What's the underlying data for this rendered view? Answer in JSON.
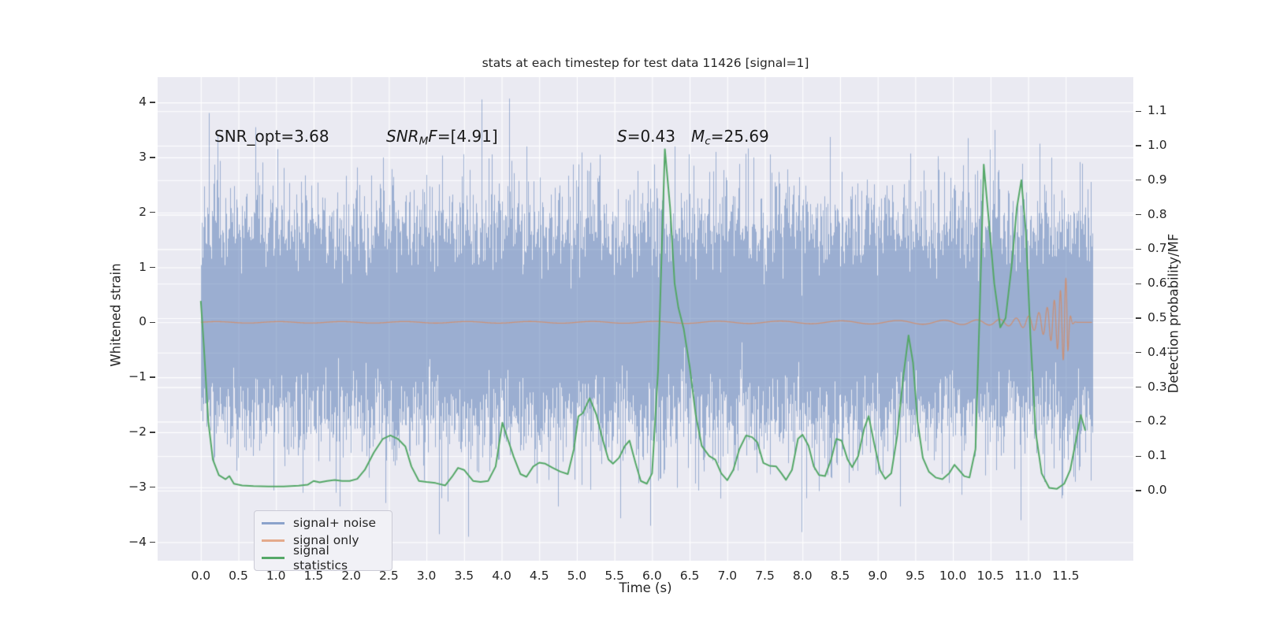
{
  "title": "stats at each timestep for test data 11426 [signal=1]",
  "colors": {
    "axes_bg": "#eaeaf2",
    "grid": "#ffffff",
    "noise_blue": "#4C72B0",
    "signal_orange": "#DD8452",
    "stats_green": "#55A868",
    "legend_bg": "#f1f1f6",
    "legend_border": "#cbcbd6",
    "text": "#262626"
  },
  "legend": {
    "items": [
      {
        "label": "signal+ noise",
        "swatch_color": "rgba(76,114,176,0.62)"
      },
      {
        "label": "signal only",
        "swatch_color": "rgba(221,132,82,0.65)"
      },
      {
        "label": "signal statistics",
        "swatch_color": "#55A868"
      }
    ]
  },
  "annotations": {
    "snr_opt": {
      "text": "SNR_opt=3.68"
    },
    "snr_mf": {
      "pre": "SNR",
      "sub": "M",
      "mid": "F",
      "post": "=[4.91]"
    },
    "s": {
      "pre": "S",
      "post": "=0.43"
    },
    "mc": {
      "pre": "M",
      "sub": "c",
      "post": "=25.69"
    }
  },
  "chart_data": {
    "type": "line",
    "title": "stats at each timestep for test data 11426 [signal=1]",
    "x_axis": {
      "label": "Time (s)",
      "range": [
        -0.574,
        12.405
      ],
      "ticks": [
        {
          "label": "0.0",
          "v": 0.0
        },
        {
          "label": "0.5",
          "v": 0.5
        },
        {
          "label": "1.0",
          "v": 1.0
        },
        {
          "label": "1.5",
          "v": 1.5
        },
        {
          "label": "2.0",
          "v": 2.0
        },
        {
          "label": "2.5",
          "v": 2.5
        },
        {
          "label": "3.0",
          "v": 3.0
        },
        {
          "label": "3.5",
          "v": 3.5
        },
        {
          "label": "4.0",
          "v": 4.0
        },
        {
          "label": "4.5",
          "v": 4.5
        },
        {
          "label": "5.0",
          "v": 5.0
        },
        {
          "label": "5.5",
          "v": 5.5
        },
        {
          "label": "6.0",
          "v": 6.0
        },
        {
          "label": "6.5",
          "v": 6.5
        },
        {
          "label": "7.0",
          "v": 7.0
        },
        {
          "label": "7.5",
          "v": 7.5
        },
        {
          "label": "8.0",
          "v": 8.0
        },
        {
          "label": "8.5",
          "v": 8.5
        },
        {
          "label": "9.0",
          "v": 9.0
        },
        {
          "label": "9.5",
          "v": 9.5
        },
        {
          "label": "10.0",
          "v": 10.0
        },
        {
          "label": "10.5",
          "v": 10.5
        },
        {
          "label": "11.0",
          "v": 11.0
        },
        {
          "label": "11.5",
          "v": 11.5
        }
      ]
    },
    "left_axis": {
      "label": "Whitened strain",
      "range": [
        -4.34,
        4.46
      ],
      "ticks": [
        {
          "label": "4",
          "v": 4
        },
        {
          "label": "3",
          "v": 3
        },
        {
          "label": "2",
          "v": 2
        },
        {
          "label": "1",
          "v": 1
        },
        {
          "label": "0",
          "v": 0
        },
        {
          "label": "−1",
          "v": -1
        },
        {
          "label": "−2",
          "v": -2
        },
        {
          "label": "−3",
          "v": -3
        },
        {
          "label": "−4",
          "v": -4
        }
      ]
    },
    "right_axis": {
      "label": "Detection probability/MF",
      "range": [
        -0.2,
        1.2
      ],
      "ticks": [
        {
          "label": "1.1",
          "v": 1.1
        },
        {
          "label": "1.0",
          "v": 1.0
        },
        {
          "label": "0.9",
          "v": 0.9
        },
        {
          "label": "0.8",
          "v": 0.8
        },
        {
          "label": "0.7",
          "v": 0.7
        },
        {
          "label": "0.6",
          "v": 0.6
        },
        {
          "label": "0.5",
          "v": 0.5
        },
        {
          "label": "0.4",
          "v": 0.4
        },
        {
          "label": "0.3",
          "v": 0.3
        },
        {
          "label": "0.2",
          "v": 0.2
        },
        {
          "label": "0.1",
          "v": 0.1
        },
        {
          "label": "0.0",
          "v": 0.0
        }
      ]
    },
    "noise": {
      "name": "signal+ noise",
      "axis": "left",
      "color": "#4C72B0",
      "alpha": 0.5,
      "sigma": 0.93,
      "samples_per_column": 22,
      "t_start": 0.0,
      "t_end": 11.85,
      "seed": 1337,
      "forced_spikes": [
        [
          0.72,
          3.55
        ],
        [
          1.02,
          3.15
        ],
        [
          1.35,
          -3.1
        ],
        [
          2.42,
          3.0
        ],
        [
          3.2,
          -3.2
        ],
        [
          3.55,
          -3.9
        ],
        [
          4.1,
          4.07
        ],
        [
          4.33,
          3.2
        ],
        [
          4.75,
          -3.35
        ],
        [
          5.3,
          3.05
        ],
        [
          5.98,
          -3.7
        ],
        [
          6.3,
          3.2
        ],
        [
          6.85,
          3.1
        ],
        [
          7.35,
          3.0
        ],
        [
          8.05,
          -3.2
        ],
        [
          9.3,
          -3.35
        ],
        [
          10.2,
          3.35
        ],
        [
          10.55,
          3.5
        ],
        [
          10.9,
          -3.6
        ],
        [
          11.15,
          3.25
        ],
        [
          11.45,
          -3.2
        ],
        [
          11.62,
          -2.9
        ]
      ]
    },
    "signal": {
      "name": "signal only",
      "axis": "left",
      "color": "#DD8452",
      "alpha": 0.7,
      "t_start": 0.0,
      "t_end": 11.85,
      "merger_t": 11.52,
      "base_amp": 0.012,
      "mid_amp": 0.05,
      "mid_tau": 2.5,
      "peak_amp": 0.81,
      "growth_tau": 0.2,
      "ring_tau": 0.022,
      "f_base": 1.2,
      "f_peak": 14.0,
      "f_tau": 0.55
    },
    "statistics": {
      "name": "signal statistics",
      "axis": "right",
      "color": "#55A868",
      "points": [
        [
          0.0,
          0.55
        ],
        [
          0.04,
          0.42
        ],
        [
          0.1,
          0.2
        ],
        [
          0.16,
          0.09
        ],
        [
          0.24,
          0.045
        ],
        [
          0.33,
          0.033
        ],
        [
          0.38,
          0.042
        ],
        [
          0.44,
          0.02
        ],
        [
          0.55,
          0.015
        ],
        [
          0.7,
          0.013
        ],
        [
          0.9,
          0.012
        ],
        [
          1.1,
          0.012
        ],
        [
          1.3,
          0.014
        ],
        [
          1.42,
          0.017
        ],
        [
          1.5,
          0.028
        ],
        [
          1.58,
          0.024
        ],
        [
          1.68,
          0.028
        ],
        [
          1.78,
          0.031
        ],
        [
          1.88,
          0.028
        ],
        [
          1.98,
          0.028
        ],
        [
          2.08,
          0.034
        ],
        [
          2.18,
          0.06
        ],
        [
          2.3,
          0.11
        ],
        [
          2.42,
          0.15
        ],
        [
          2.52,
          0.16
        ],
        [
          2.62,
          0.15
        ],
        [
          2.72,
          0.128
        ],
        [
          2.8,
          0.07
        ],
        [
          2.9,
          0.028
        ],
        [
          3.0,
          0.025
        ],
        [
          3.12,
          0.022
        ],
        [
          3.25,
          0.015
        ],
        [
          3.34,
          0.04
        ],
        [
          3.42,
          0.066
        ],
        [
          3.5,
          0.06
        ],
        [
          3.62,
          0.028
        ],
        [
          3.72,
          0.025
        ],
        [
          3.82,
          0.028
        ],
        [
          3.92,
          0.07
        ],
        [
          4.01,
          0.197
        ],
        [
          4.08,
          0.15
        ],
        [
          4.16,
          0.098
        ],
        [
          4.25,
          0.048
        ],
        [
          4.33,
          0.04
        ],
        [
          4.42,
          0.07
        ],
        [
          4.5,
          0.081
        ],
        [
          4.58,
          0.078
        ],
        [
          4.68,
          0.066
        ],
        [
          4.78,
          0.055
        ],
        [
          4.88,
          0.048
        ],
        [
          4.96,
          0.12
        ],
        [
          5.02,
          0.215
        ],
        [
          5.08,
          0.225
        ],
        [
          5.17,
          0.268
        ],
        [
          5.26,
          0.22
        ],
        [
          5.34,
          0.15
        ],
        [
          5.42,
          0.09
        ],
        [
          5.48,
          0.078
        ],
        [
          5.56,
          0.095
        ],
        [
          5.64,
          0.13
        ],
        [
          5.7,
          0.145
        ],
        [
          5.78,
          0.08
        ],
        [
          5.85,
          0.028
        ],
        [
          5.93,
          0.02
        ],
        [
          6.0,
          0.05
        ],
        [
          6.08,
          0.35
        ],
        [
          6.17,
          0.99
        ],
        [
          6.24,
          0.82
        ],
        [
          6.3,
          0.6
        ],
        [
          6.35,
          0.53
        ],
        [
          6.42,
          0.47
        ],
        [
          6.5,
          0.36
        ],
        [
          6.58,
          0.22
        ],
        [
          6.66,
          0.13
        ],
        [
          6.76,
          0.1
        ],
        [
          6.84,
          0.09
        ],
        [
          6.92,
          0.05
        ],
        [
          7.0,
          0.03
        ],
        [
          7.08,
          0.06
        ],
        [
          7.16,
          0.12
        ],
        [
          7.25,
          0.16
        ],
        [
          7.33,
          0.155
        ],
        [
          7.4,
          0.14
        ],
        [
          7.48,
          0.08
        ],
        [
          7.56,
          0.072
        ],
        [
          7.65,
          0.07
        ],
        [
          7.72,
          0.05
        ],
        [
          7.78,
          0.031
        ],
        [
          7.86,
          0.06
        ],
        [
          7.94,
          0.15
        ],
        [
          8.0,
          0.162
        ],
        [
          8.08,
          0.13
        ],
        [
          8.15,
          0.07
        ],
        [
          8.22,
          0.045
        ],
        [
          8.3,
          0.042
        ],
        [
          8.38,
          0.09
        ],
        [
          8.45,
          0.15
        ],
        [
          8.52,
          0.145
        ],
        [
          8.6,
          0.09
        ],
        [
          8.66,
          0.068
        ],
        [
          8.74,
          0.1
        ],
        [
          8.82,
          0.18
        ],
        [
          8.88,
          0.216
        ],
        [
          8.95,
          0.14
        ],
        [
          9.03,
          0.06
        ],
        [
          9.1,
          0.034
        ],
        [
          9.18,
          0.05
        ],
        [
          9.26,
          0.16
        ],
        [
          9.34,
          0.33
        ],
        [
          9.41,
          0.45
        ],
        [
          9.47,
          0.37
        ],
        [
          9.53,
          0.2
        ],
        [
          9.6,
          0.095
        ],
        [
          9.68,
          0.055
        ],
        [
          9.77,
          0.038
        ],
        [
          9.86,
          0.033
        ],
        [
          9.95,
          0.05
        ],
        [
          10.02,
          0.075
        ],
        [
          10.08,
          0.06
        ],
        [
          10.15,
          0.042
        ],
        [
          10.22,
          0.038
        ],
        [
          10.3,
          0.12
        ],
        [
          10.36,
          0.55
        ],
        [
          10.41,
          0.945
        ],
        [
          10.47,
          0.8
        ],
        [
          10.55,
          0.6
        ],
        [
          10.63,
          0.473
        ],
        [
          10.7,
          0.5
        ],
        [
          10.78,
          0.65
        ],
        [
          10.85,
          0.82
        ],
        [
          10.91,
          0.9
        ],
        [
          10.97,
          0.75
        ],
        [
          11.03,
          0.45
        ],
        [
          11.1,
          0.17
        ],
        [
          11.18,
          0.05
        ],
        [
          11.28,
          0.008
        ],
        [
          11.38,
          0.005
        ],
        [
          11.48,
          0.02
        ],
        [
          11.56,
          0.06
        ],
        [
          11.64,
          0.15
        ],
        [
          11.7,
          0.219
        ],
        [
          11.76,
          0.174
        ]
      ]
    }
  }
}
